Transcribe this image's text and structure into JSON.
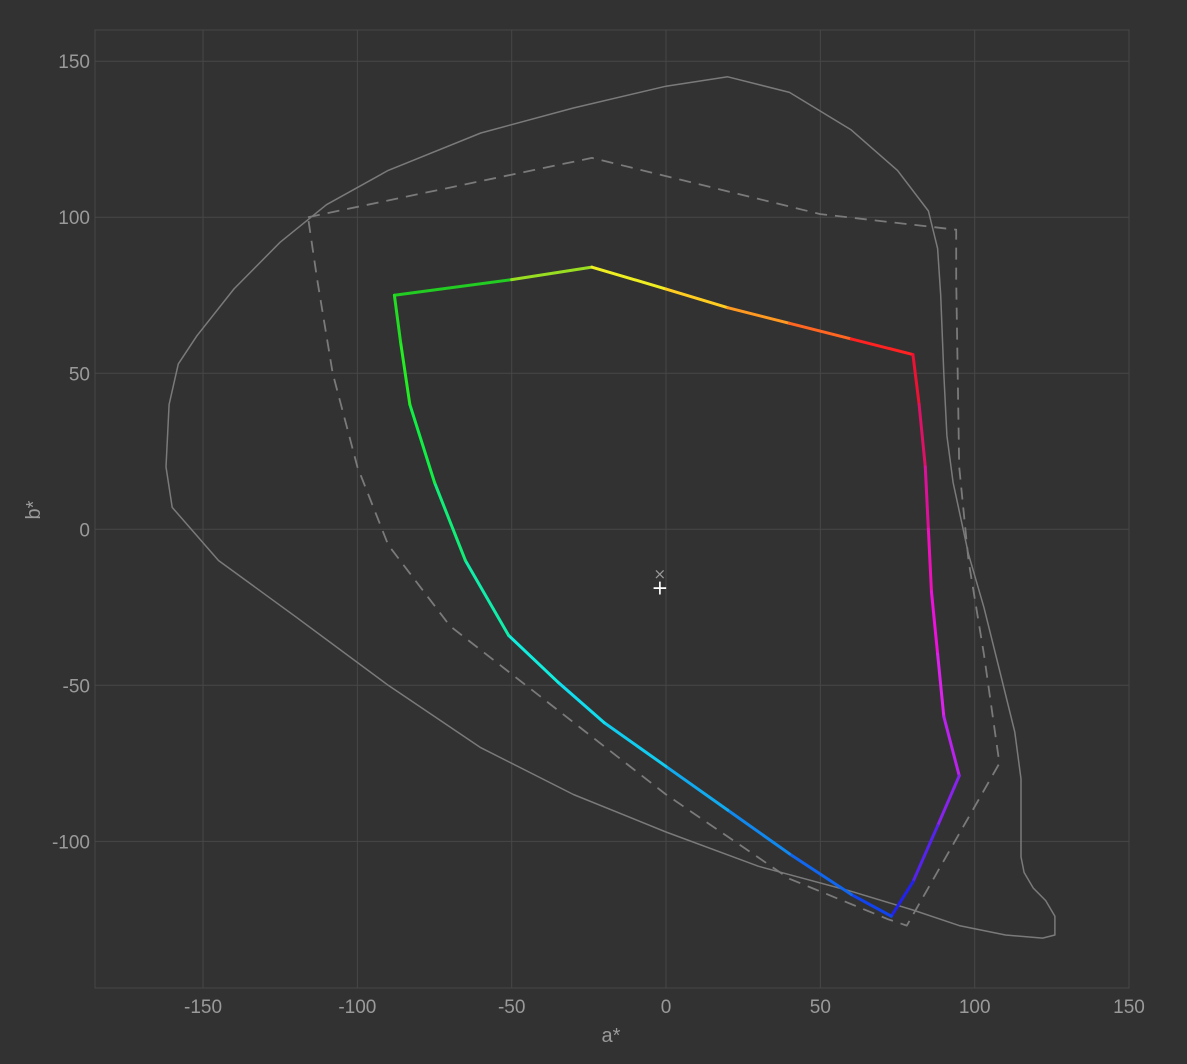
{
  "chart_data": {
    "type": "line",
    "title": "",
    "xlabel": "a*",
    "ylabel": "b*",
    "xlim": [
      -185,
      150
    ],
    "ylim": [
      -147,
      160
    ],
    "grid": true,
    "x_ticks": [
      -150,
      -100,
      -50,
      0,
      50,
      100,
      150
    ],
    "y_ticks": [
      -100,
      -50,
      0,
      50,
      100,
      150
    ],
    "x_tick_labels": [
      "-150",
      "-100",
      "-50",
      "0",
      "50",
      "100",
      "150"
    ],
    "y_tick_labels": [
      "-100",
      "-50",
      "0",
      "50",
      "100",
      "150"
    ],
    "colors": {
      "background": "#323232",
      "grid": "#474747",
      "reference": "#7a7a7a",
      "tick_text": "#9a9a9a"
    },
    "series": [
      {
        "style": "solid-gray",
        "points": [
          [
            -162,
            20
          ],
          [
            -161,
            40
          ],
          [
            -158,
            53
          ],
          [
            -152,
            62
          ],
          [
            -140,
            77
          ],
          [
            -125,
            92
          ],
          [
            -110,
            104
          ],
          [
            -90,
            115
          ],
          [
            -60,
            127
          ],
          [
            -30,
            135
          ],
          [
            0,
            142
          ],
          [
            20,
            145
          ],
          [
            40,
            140
          ],
          [
            60,
            128
          ],
          [
            75,
            115
          ],
          [
            85,
            102
          ],
          [
            88,
            90
          ],
          [
            89,
            75
          ],
          [
            90,
            50
          ],
          [
            91,
            30
          ],
          [
            93,
            15
          ],
          [
            98,
            -8
          ],
          [
            103,
            -25
          ],
          [
            108,
            -45
          ],
          [
            113,
            -65
          ],
          [
            115,
            -80
          ],
          [
            115,
            -95
          ],
          [
            115,
            -105
          ],
          [
            116,
            -110
          ],
          [
            119,
            -115
          ],
          [
            123,
            -119
          ],
          [
            126,
            -124
          ],
          [
            126,
            -130
          ],
          [
            122,
            -131
          ],
          [
            110,
            -130
          ],
          [
            95,
            -127
          ],
          [
            80,
            -122
          ],
          [
            60,
            -116
          ],
          [
            30,
            -108
          ],
          [
            0,
            -97
          ],
          [
            -30,
            -85
          ],
          [
            -60,
            -70
          ],
          [
            -90,
            -50
          ],
          [
            -120,
            -28
          ],
          [
            -145,
            -10
          ],
          [
            -160,
            7
          ],
          [
            -162,
            20
          ]
        ]
      },
      {
        "style": "dashed-gray",
        "points": [
          [
            -116,
            100
          ],
          [
            -24,
            119
          ],
          [
            50,
            101
          ],
          [
            94,
            96
          ],
          [
            94,
            80
          ],
          [
            95,
            20
          ],
          [
            98,
            -10
          ],
          [
            103,
            -40
          ],
          [
            108,
            -75
          ],
          [
            78,
            -127
          ],
          [
            72,
            -125
          ],
          [
            40,
            -112
          ],
          [
            0,
            -85
          ],
          [
            -35,
            -58
          ],
          [
            -70,
            -31
          ],
          [
            -90,
            -5
          ],
          [
            -100,
            20
          ],
          [
            -108,
            50
          ],
          [
            -113,
            80
          ],
          [
            -116,
            100
          ]
        ]
      },
      {
        "style": "gamut-colored",
        "points": [
          [
            -88,
            75
          ],
          [
            -50,
            80
          ],
          [
            -24,
            84
          ],
          [
            0,
            77
          ],
          [
            20,
            71
          ],
          [
            40,
            66
          ],
          [
            60,
            61
          ],
          [
            80,
            56
          ],
          [
            82,
            40
          ],
          [
            84,
            20
          ],
          [
            85,
            0
          ],
          [
            86,
            -20
          ],
          [
            88,
            -40
          ],
          [
            90,
            -60
          ],
          [
            95,
            -79
          ],
          [
            88,
            -95
          ],
          [
            80,
            -113
          ],
          [
            73,
            -124
          ],
          [
            60,
            -117
          ],
          [
            40,
            -104
          ],
          [
            20,
            -90
          ],
          [
            0,
            -76
          ],
          [
            -20,
            -62
          ],
          [
            -35,
            -49
          ],
          [
            -51,
            -34
          ],
          [
            -65,
            -10
          ],
          [
            -75,
            15
          ],
          [
            -83,
            40
          ],
          [
            -86,
            60
          ],
          [
            -88,
            75
          ]
        ],
        "segment_colors": [
          "#22cc22",
          "#99dd22",
          "#eeee22",
          "#ffcc22",
          "#ff9922",
          "#ff6622",
          "#ff2222",
          "#ee1133",
          "#dd1166",
          "#dd1199",
          "#ee11bb",
          "#ee11dd",
          "#dd22ee",
          "#bb22ee",
          "#8822ee",
          "#5522ee",
          "#2222ee",
          "#1144ee",
          "#1166ee",
          "#1188ee",
          "#11aaee",
          "#11ccee",
          "#11ddee",
          "#11eedd",
          "#11eeaa",
          "#11ee77",
          "#11ee44",
          "#22ee22",
          "#22dd22"
        ]
      }
    ],
    "markers": [
      {
        "symbol": "×",
        "x": -2,
        "y": -14
      },
      {
        "symbol": "+",
        "x": -2,
        "y": -19
      }
    ]
  }
}
